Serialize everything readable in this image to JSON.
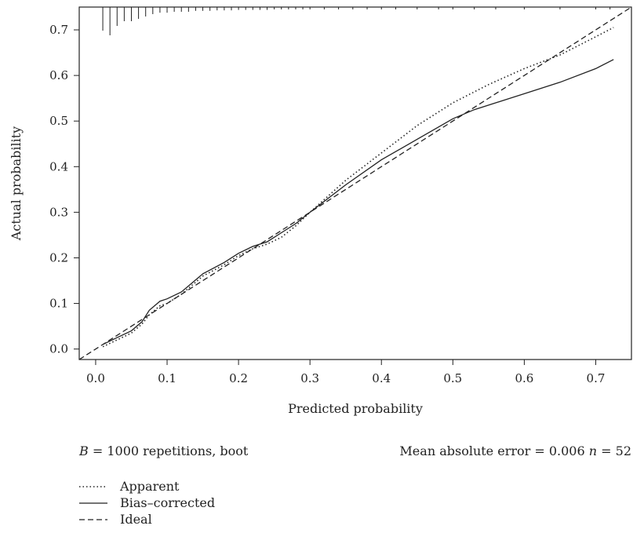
{
  "chart_data": {
    "type": "line",
    "xlabel": "Predicted probability",
    "ylabel": "Actual probability",
    "xlim": [
      -0.023,
      0.75
    ],
    "ylim": [
      -0.023,
      0.75
    ],
    "xticks": [
      "0.0",
      "0.1",
      "0.2",
      "0.3",
      "0.4",
      "0.5",
      "0.6",
      "0.7"
    ],
    "yticks": [
      "0.0",
      "0.1",
      "0.2",
      "0.3",
      "0.4",
      "0.5",
      "0.6",
      "0.7"
    ],
    "grid": false,
    "legend_position": "bottom-left",
    "series": [
      {
        "name": "Apparent",
        "style": "dotted",
        "x": [
          0.01,
          0.03,
          0.05,
          0.065,
          0.075,
          0.09,
          0.1,
          0.12,
          0.15,
          0.18,
          0.2,
          0.22,
          0.24,
          0.26,
          0.28,
          0.3,
          0.35,
          0.4,
          0.45,
          0.5,
          0.55,
          0.6,
          0.65,
          0.7,
          0.725
        ],
        "y": [
          0.005,
          0.02,
          0.035,
          0.055,
          0.075,
          0.095,
          0.1,
          0.12,
          0.16,
          0.185,
          0.205,
          0.22,
          0.23,
          0.245,
          0.27,
          0.3,
          0.37,
          0.43,
          0.49,
          0.54,
          0.58,
          0.615,
          0.645,
          0.685,
          0.705
        ]
      },
      {
        "name": "Bias–corrected",
        "style": "solid",
        "x": [
          0.01,
          0.03,
          0.05,
          0.065,
          0.075,
          0.09,
          0.1,
          0.12,
          0.15,
          0.18,
          0.2,
          0.22,
          0.24,
          0.26,
          0.28,
          0.3,
          0.35,
          0.4,
          0.45,
          0.5,
          0.53,
          0.6,
          0.65,
          0.7,
          0.725
        ],
        "y": [
          0.01,
          0.025,
          0.04,
          0.06,
          0.085,
          0.105,
          0.11,
          0.125,
          0.165,
          0.19,
          0.21,
          0.225,
          0.235,
          0.255,
          0.275,
          0.3,
          0.36,
          0.415,
          0.46,
          0.505,
          0.525,
          0.56,
          0.585,
          0.615,
          0.635
        ]
      },
      {
        "name": "Ideal",
        "style": "dashed",
        "x": [
          -0.023,
          0.75
        ],
        "y": [
          -0.023,
          0.75
        ]
      }
    ],
    "rug": {
      "x": [
        0.01,
        0.02,
        0.03,
        0.04,
        0.05,
        0.06,
        0.07,
        0.08,
        0.09,
        0.1,
        0.11,
        0.12,
        0.13,
        0.14,
        0.15,
        0.16,
        0.17,
        0.18,
        0.19,
        0.2,
        0.21,
        0.22,
        0.23,
        0.24,
        0.25,
        0.26,
        0.27,
        0.28,
        0.29,
        0.3,
        0.32,
        0.34,
        0.36,
        0.38,
        0.4,
        0.42,
        0.45,
        0.48,
        0.5,
        0.53,
        0.56,
        0.6,
        0.65,
        0.7,
        0.72
      ],
      "len": [
        0.5,
        0.6,
        0.4,
        0.3,
        0.3,
        0.25,
        0.2,
        0.15,
        0.12,
        0.12,
        0.1,
        0.1,
        0.1,
        0.08,
        0.08,
        0.08,
        0.07,
        0.07,
        0.07,
        0.06,
        0.06,
        0.06,
        0.06,
        0.06,
        0.05,
        0.05,
        0.05,
        0.05,
        0.05,
        0.05,
        0.05,
        0.05,
        0.05,
        0.05,
        0.05,
        0.05,
        0.05,
        0.05,
        0.05,
        0.05,
        0.05,
        0.05,
        0.05,
        0.05,
        0.05
      ]
    },
    "annotations": {
      "repetitions_prefix": "B",
      "repetitions_text": " = 1000 repetitions, boot",
      "error_text": "Mean absolute error = 0.006 ",
      "n_symbol": "n",
      "n_text": " = 52"
    }
  }
}
